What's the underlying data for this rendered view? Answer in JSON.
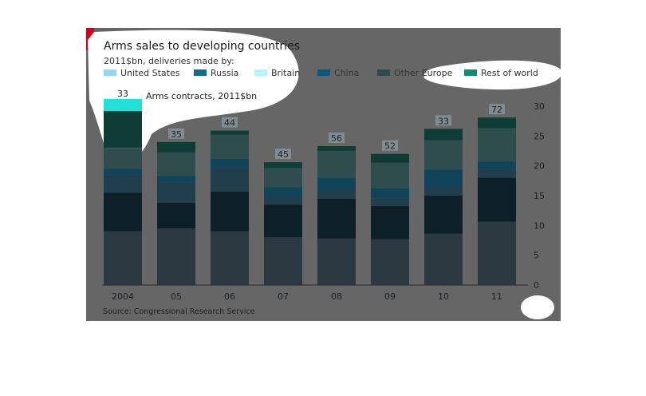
{
  "chart_data": {
    "type": "bar",
    "stacked": true,
    "title": "Arms sales to developing countries",
    "subtitle": "2011$bn, deliveries made by:",
    "annotation": "Arms contracts, 2011$bn",
    "source": "Source: Congressional Research Service",
    "categories": [
      "2004",
      "05",
      "06",
      "07",
      "08",
      "09",
      "10",
      "11"
    ],
    "series": [
      {
        "name": "Other Europe",
        "values": [
          9.0,
          9.5,
          9.0,
          8.0,
          7.8,
          7.7,
          8.6,
          10.6
        ],
        "color": "#2b3a40"
      },
      {
        "name": "United States",
        "values": [
          6.5,
          4.3,
          6.7,
          5.5,
          6.7,
          5.6,
          6.4,
          7.4
        ],
        "color": "#0d1f27"
      },
      {
        "name": "Russia",
        "values": [
          3.0,
          3.5,
          4.0,
          1.3,
          1.5,
          1.2,
          1.4,
          1.4
        ],
        "color": "#213e4d"
      },
      {
        "name": "China",
        "values": [
          1.0,
          1.0,
          1.5,
          1.6,
          2.0,
          1.7,
          3.0,
          1.3
        ],
        "color": "#0f4459"
      },
      {
        "name": "Britain",
        "values": [
          3.5,
          4.0,
          4.0,
          3.2,
          4.5,
          4.3,
          4.9,
          5.6
        ],
        "color": "#2e4d4c"
      },
      {
        "name": "Rest of world",
        "values": [
          6.2,
          1.7,
          0.7,
          1.0,
          0.8,
          1.5,
          1.9,
          1.8
        ],
        "color": "#0e3d35"
      }
    ],
    "contracts": [
      33,
      35,
      44,
      45,
      56,
      52,
      33,
      72
    ],
    "ylim": [
      0,
      30
    ],
    "yticks": [
      0,
      5,
      10,
      15,
      20,
      25,
      30
    ],
    "legend": [
      {
        "name": "United States",
        "color": "#8fd8ef"
      },
      {
        "name": "Russia",
        "color": "#0c6e90"
      },
      {
        "name": "Britain",
        "color": "#b7f4fa"
      },
      {
        "name": "China",
        "color": "#0a5a7d"
      },
      {
        "name": "Other Europe",
        "color": "#2e4b4b"
      },
      {
        "name": "Rest of world",
        "color": "#0d8a7c"
      }
    ],
    "legend_position": "top",
    "grid": false
  }
}
